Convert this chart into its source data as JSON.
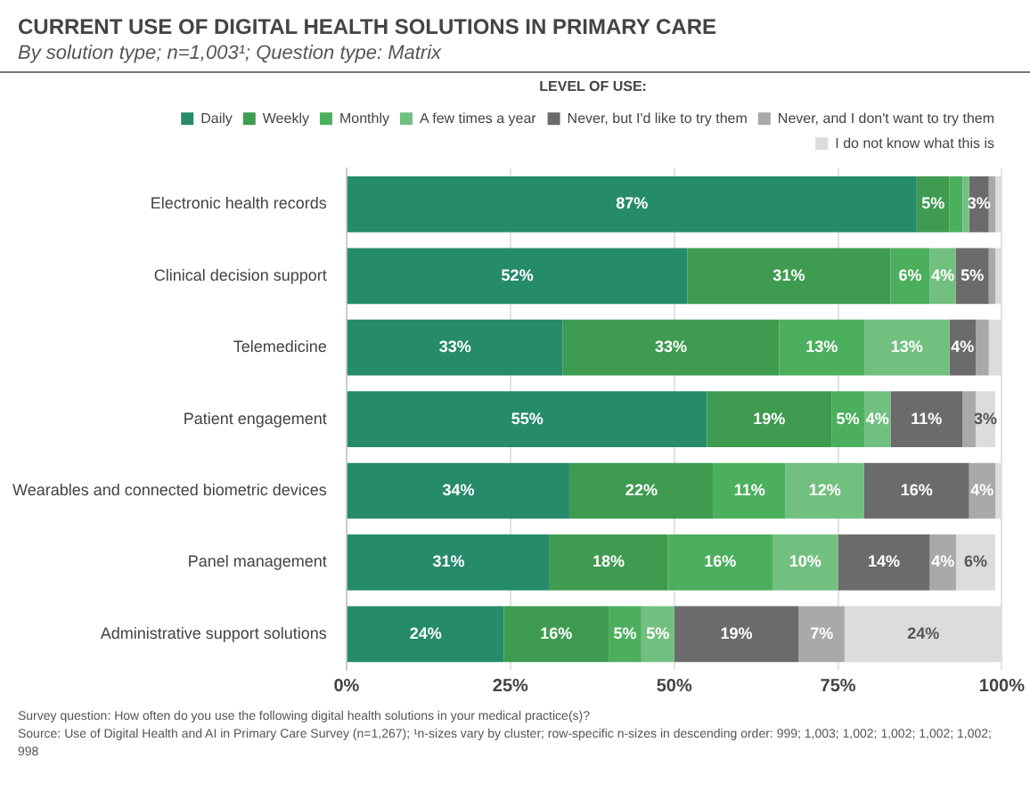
{
  "chart_data": {
    "type": "bar",
    "orientation": "horizontal",
    "stacked": true,
    "title": "CURRENT USE OF DIGITAL HEALTH SOLUTIONS IN PRIMARY CARE",
    "subtitle": "By solution type; n=1,003¹; Question type: Matrix",
    "legend_title": "LEVEL OF USE:",
    "legend": "top",
    "grid": "x",
    "categories": [
      "Electronic health records",
      "Clinical decision support",
      "Telemedicine",
      "Patient engagement",
      "Wearables and connected biometric devices",
      "Panel management",
      "Administrative support solutions"
    ],
    "xlim": [
      0,
      100
    ],
    "xticks": [
      {
        "value": 0,
        "label": "0%"
      },
      {
        "value": 25,
        "label": "25%"
      },
      {
        "value": 50,
        "label": "50%"
      },
      {
        "value": 75,
        "label": "75%"
      },
      {
        "value": 100,
        "label": "100%"
      }
    ],
    "series": [
      {
        "name": "Daily",
        "color": "#268b6a",
        "values": [
          87,
          52,
          33,
          55,
          34,
          31,
          24
        ],
        "value_labels": [
          "87%",
          "52%",
          "33%",
          "55%",
          "34%",
          "31%",
          "24%"
        ]
      },
      {
        "name": "Weekly",
        "color": "#3e9b50",
        "values": [
          5,
          31,
          33,
          19,
          22,
          18,
          16
        ],
        "value_labels": [
          "5%",
          "31%",
          "33%",
          "19%",
          "22%",
          "18%",
          "16%"
        ]
      },
      {
        "name": "Monthly",
        "color": "#4caf5e",
        "values": [
          2,
          6,
          13,
          5,
          11,
          16,
          5
        ],
        "value_labels": [
          null,
          "6%",
          "13%",
          "5%",
          "11%",
          "16%",
          "5%"
        ]
      },
      {
        "name": "A few times a year",
        "color": "#72c080",
        "values": [
          1,
          4,
          13,
          4,
          12,
          10,
          5
        ],
        "value_labels": [
          null,
          "4%",
          "13%",
          "4%",
          "12%",
          "10%",
          "5%"
        ]
      },
      {
        "name": "Never, but I'd like to try them",
        "color": "#6b6b6b",
        "values": [
          3,
          5,
          4,
          11,
          16,
          14,
          19
        ],
        "value_labels": [
          "3%",
          "5%",
          "4%",
          "11%",
          "16%",
          "14%",
          "19%"
        ]
      },
      {
        "name": "Never, and I don't want to try them",
        "color": "#a9a9a9",
        "values": [
          1,
          1,
          2,
          2,
          4,
          4,
          7
        ],
        "value_labels": [
          null,
          null,
          null,
          null,
          "4%",
          "4%",
          "7%"
        ]
      },
      {
        "name": "I do not know what this is",
        "color": "#dcdcdc",
        "values": [
          1,
          1,
          2,
          3,
          1,
          6,
          24
        ],
        "value_labels": [
          null,
          null,
          null,
          "3%",
          null,
          "6%",
          "24%"
        ]
      }
    ],
    "annotations": [
      "Survey question: How often do you use the following digital health solutions in your medical practice(s)?",
      "Source: Use of Digital Health and AI in Primary Care Survey (n=1,267); ¹n-sizes vary by cluster; row-specific n-sizes in descending order: 999; 1,003; 1,002; 1,002; 1,002; 1,002; 998"
    ]
  }
}
